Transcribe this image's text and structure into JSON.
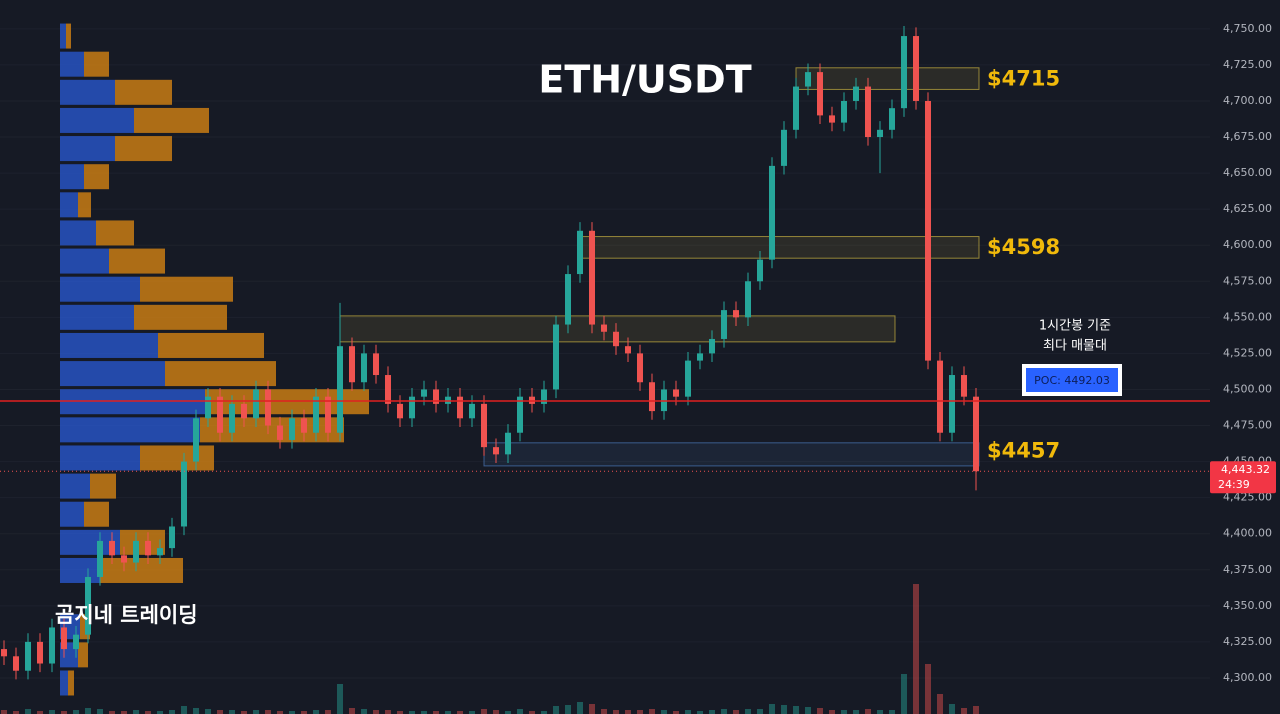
{
  "chart_data": {
    "type": "candlestick",
    "title": "ETH/USDT",
    "watermark": "곰지네 트레이딩",
    "ylim": [
      4275,
      4770
    ],
    "yticks": [
      {
        "value": 4300,
        "label": "4,300.00"
      },
      {
        "value": 4325,
        "label": "4,325.00"
      },
      {
        "value": 4350,
        "label": "4,350.00"
      },
      {
        "value": 4375,
        "label": "4,375.00"
      },
      {
        "value": 4400,
        "label": "4,400.00"
      },
      {
        "value": 4425,
        "label": "4,425.00"
      },
      {
        "value": 4450,
        "label": "4,450.00"
      },
      {
        "value": 4475,
        "label": "4,475.00"
      },
      {
        "value": 4500,
        "label": "4,500.00"
      },
      {
        "value": 4525,
        "label": "4,525.00"
      },
      {
        "value": 4550,
        "label": "4,550.00"
      },
      {
        "value": 4575,
        "label": "4,575.00"
      },
      {
        "value": 4600,
        "label": "4,600.00"
      },
      {
        "value": 4625,
        "label": "4,625.00"
      },
      {
        "value": 4650,
        "label": "4,650.00"
      },
      {
        "value": 4675,
        "label": "4,675.00"
      },
      {
        "value": 4700,
        "label": "4,700.00"
      },
      {
        "value": 4725,
        "label": "4,725.00"
      },
      {
        "value": 4750,
        "label": "4,750.00"
      }
    ],
    "up_color": "#26a69a",
    "down_color": "#ef5350",
    "candles": {
      "open": [
        4320,
        4315,
        4305,
        4325,
        4310,
        4335,
        4320,
        4330,
        4370,
        4395,
        4385,
        4380,
        4395,
        4385,
        4390,
        4405,
        4450,
        4480,
        4495,
        4470,
        4490,
        4480,
        4500,
        4475,
        4465,
        4480,
        4470,
        4495,
        4470,
        4530,
        4505,
        4525,
        4510,
        4490,
        4480,
        4495,
        4500,
        4490,
        4495,
        4480,
        4490,
        4460,
        4455,
        4470,
        4495,
        4490,
        4500,
        4545,
        4580,
        4610,
        4545,
        4540,
        4530,
        4525,
        4505,
        4485,
        4500,
        4495,
        4520,
        4525,
        4535,
        4555,
        4550,
        4575,
        4590,
        4655,
        4680,
        4710,
        4720,
        4690,
        4685,
        4700,
        4710,
        4675,
        4680,
        4695,
        4745,
        4700,
        4520,
        4470,
        4510,
        4495
      ],
      "high": [
        4326,
        4321,
        4331,
        4331,
        4341,
        4341,
        4336,
        4376,
        4401,
        4401,
        4391,
        4401,
        4401,
        4396,
        4411,
        4456,
        4486,
        4501,
        4501,
        4496,
        4496,
        4506,
        4506,
        4481,
        4486,
        4486,
        4501,
        4501,
        4560,
        4536,
        4531,
        4531,
        4516,
        4496,
        4501,
        4506,
        4506,
        4501,
        4501,
        4496,
        4496,
        4466,
        4476,
        4501,
        4501,
        4506,
        4551,
        4586,
        4616,
        4616,
        4551,
        4546,
        4536,
        4531,
        4511,
        4506,
        4506,
        4526,
        4531,
        4541,
        4561,
        4561,
        4581,
        4596,
        4661,
        4686,
        4716,
        4726,
        4726,
        4696,
        4706,
        4716,
        4716,
        4686,
        4701,
        4752,
        4751,
        4706,
        4526,
        4516,
        4516,
        4501
      ],
      "low": [
        4309,
        4299,
        4299,
        4304,
        4304,
        4314,
        4314,
        4324,
        4364,
        4379,
        4374,
        4374,
        4379,
        4379,
        4384,
        4399,
        4444,
        4474,
        4464,
        4464,
        4474,
        4474,
        4469,
        4459,
        4459,
        4464,
        4464,
        4464,
        4464,
        4499,
        4499,
        4504,
        4484,
        4474,
        4474,
        4489,
        4484,
        4484,
        4474,
        4474,
        4454,
        4449,
        4449,
        4464,
        4484,
        4484,
        4494,
        4539,
        4574,
        4539,
        4534,
        4524,
        4519,
        4499,
        4479,
        4479,
        4489,
        4489,
        4514,
        4519,
        4529,
        4544,
        4544,
        4569,
        4584,
        4649,
        4674,
        4704,
        4684,
        4679,
        4679,
        4694,
        4669,
        4650,
        4674,
        4689,
        4694,
        4514,
        4464,
        4464,
        4489,
        4430
      ],
      "close": [
        4315,
        4305,
        4325,
        4310,
        4335,
        4320,
        4330,
        4370,
        4395,
        4385,
        4380,
        4395,
        4385,
        4390,
        4405,
        4450,
        4480,
        4495,
        4470,
        4490,
        4480,
        4500,
        4475,
        4465,
        4480,
        4470,
        4495,
        4470,
        4530,
        4505,
        4525,
        4510,
        4490,
        4480,
        4495,
        4500,
        4490,
        4495,
        4480,
        4490,
        4460,
        4455,
        4470,
        4495,
        4490,
        4500,
        4545,
        4580,
        4610,
        4545,
        4540,
        4530,
        4525,
        4505,
        4485,
        4500,
        4495,
        4520,
        4525,
        4535,
        4555,
        4550,
        4575,
        4590,
        4655,
        4680,
        4710,
        4720,
        4690,
        4685,
        4700,
        4710,
        4675,
        4680,
        4695,
        4745,
        4700,
        4520,
        4470,
        4510,
        4495,
        4443.32
      ],
      "volume": [
        4,
        3,
        5,
        3,
        4,
        3,
        4,
        6,
        5,
        3,
        3,
        4,
        3,
        3,
        4,
        8,
        6,
        5,
        4,
        4,
        3,
        4,
        4,
        3,
        3,
        3,
        4,
        4,
        30,
        6,
        5,
        4,
        4,
        3,
        3,
        3,
        3,
        3,
        3,
        3,
        5,
        4,
        3,
        5,
        3,
        3,
        8,
        9,
        12,
        10,
        5,
        4,
        4,
        4,
        5,
        4,
        3,
        4,
        3,
        4,
        5,
        4,
        5,
        5,
        10,
        9,
        8,
        7,
        6,
        4,
        4,
        4,
        5,
        4,
        4,
        40,
        130,
        50,
        20,
        10,
        6,
        8
      ]
    },
    "volume_profile": {
      "buy_color": "#2a5bd7",
      "sell_color": "#e08a12",
      "prices": [
        4745,
        4725.5,
        4706,
        4686.5,
        4667,
        4647.5,
        4628,
        4608.5,
        4589,
        4569.5,
        4550,
        4530.5,
        4511,
        4491.5,
        4472,
        4452.5,
        4433,
        4413.5,
        4394,
        4374.5,
        4335.5,
        4316,
        4296.5
      ],
      "buy": [
        6,
        24,
        55,
        74,
        55,
        24,
        18,
        36,
        49,
        80,
        74,
        98,
        105,
        145,
        140,
        80,
        30,
        24,
        60,
        40,
        20,
        18,
        8
      ],
      "sell": [
        5,
        25,
        57,
        75,
        57,
        25,
        13,
        38,
        56,
        93,
        93,
        106,
        111,
        164,
        144,
        74,
        26,
        25,
        45,
        83,
        10,
        10,
        6
      ]
    },
    "zones": [
      {
        "range": [
          4708,
          4723
        ],
        "start": 66,
        "end": 81,
        "value": 4715,
        "label": "$4715"
      },
      {
        "range": [
          4591,
          4606
        ],
        "start": 48,
        "end": 81,
        "value": 4598,
        "label": "$4598"
      },
      {
        "range": [
          4533,
          4551
        ],
        "start": 28,
        "end": 74
      },
      {
        "range": [
          4447,
          4463
        ],
        "start": 40,
        "end": 81,
        "value": 4457,
        "label": "$4457"
      }
    ],
    "poc": {
      "value": 4492.03,
      "label": "POC: 4492.03",
      "note": [
        "1시간봉 기준",
        "최다 매물대"
      ]
    },
    "last_price": {
      "value": 4443.32,
      "label": "4,443.32",
      "countdown": "24:39"
    }
  }
}
